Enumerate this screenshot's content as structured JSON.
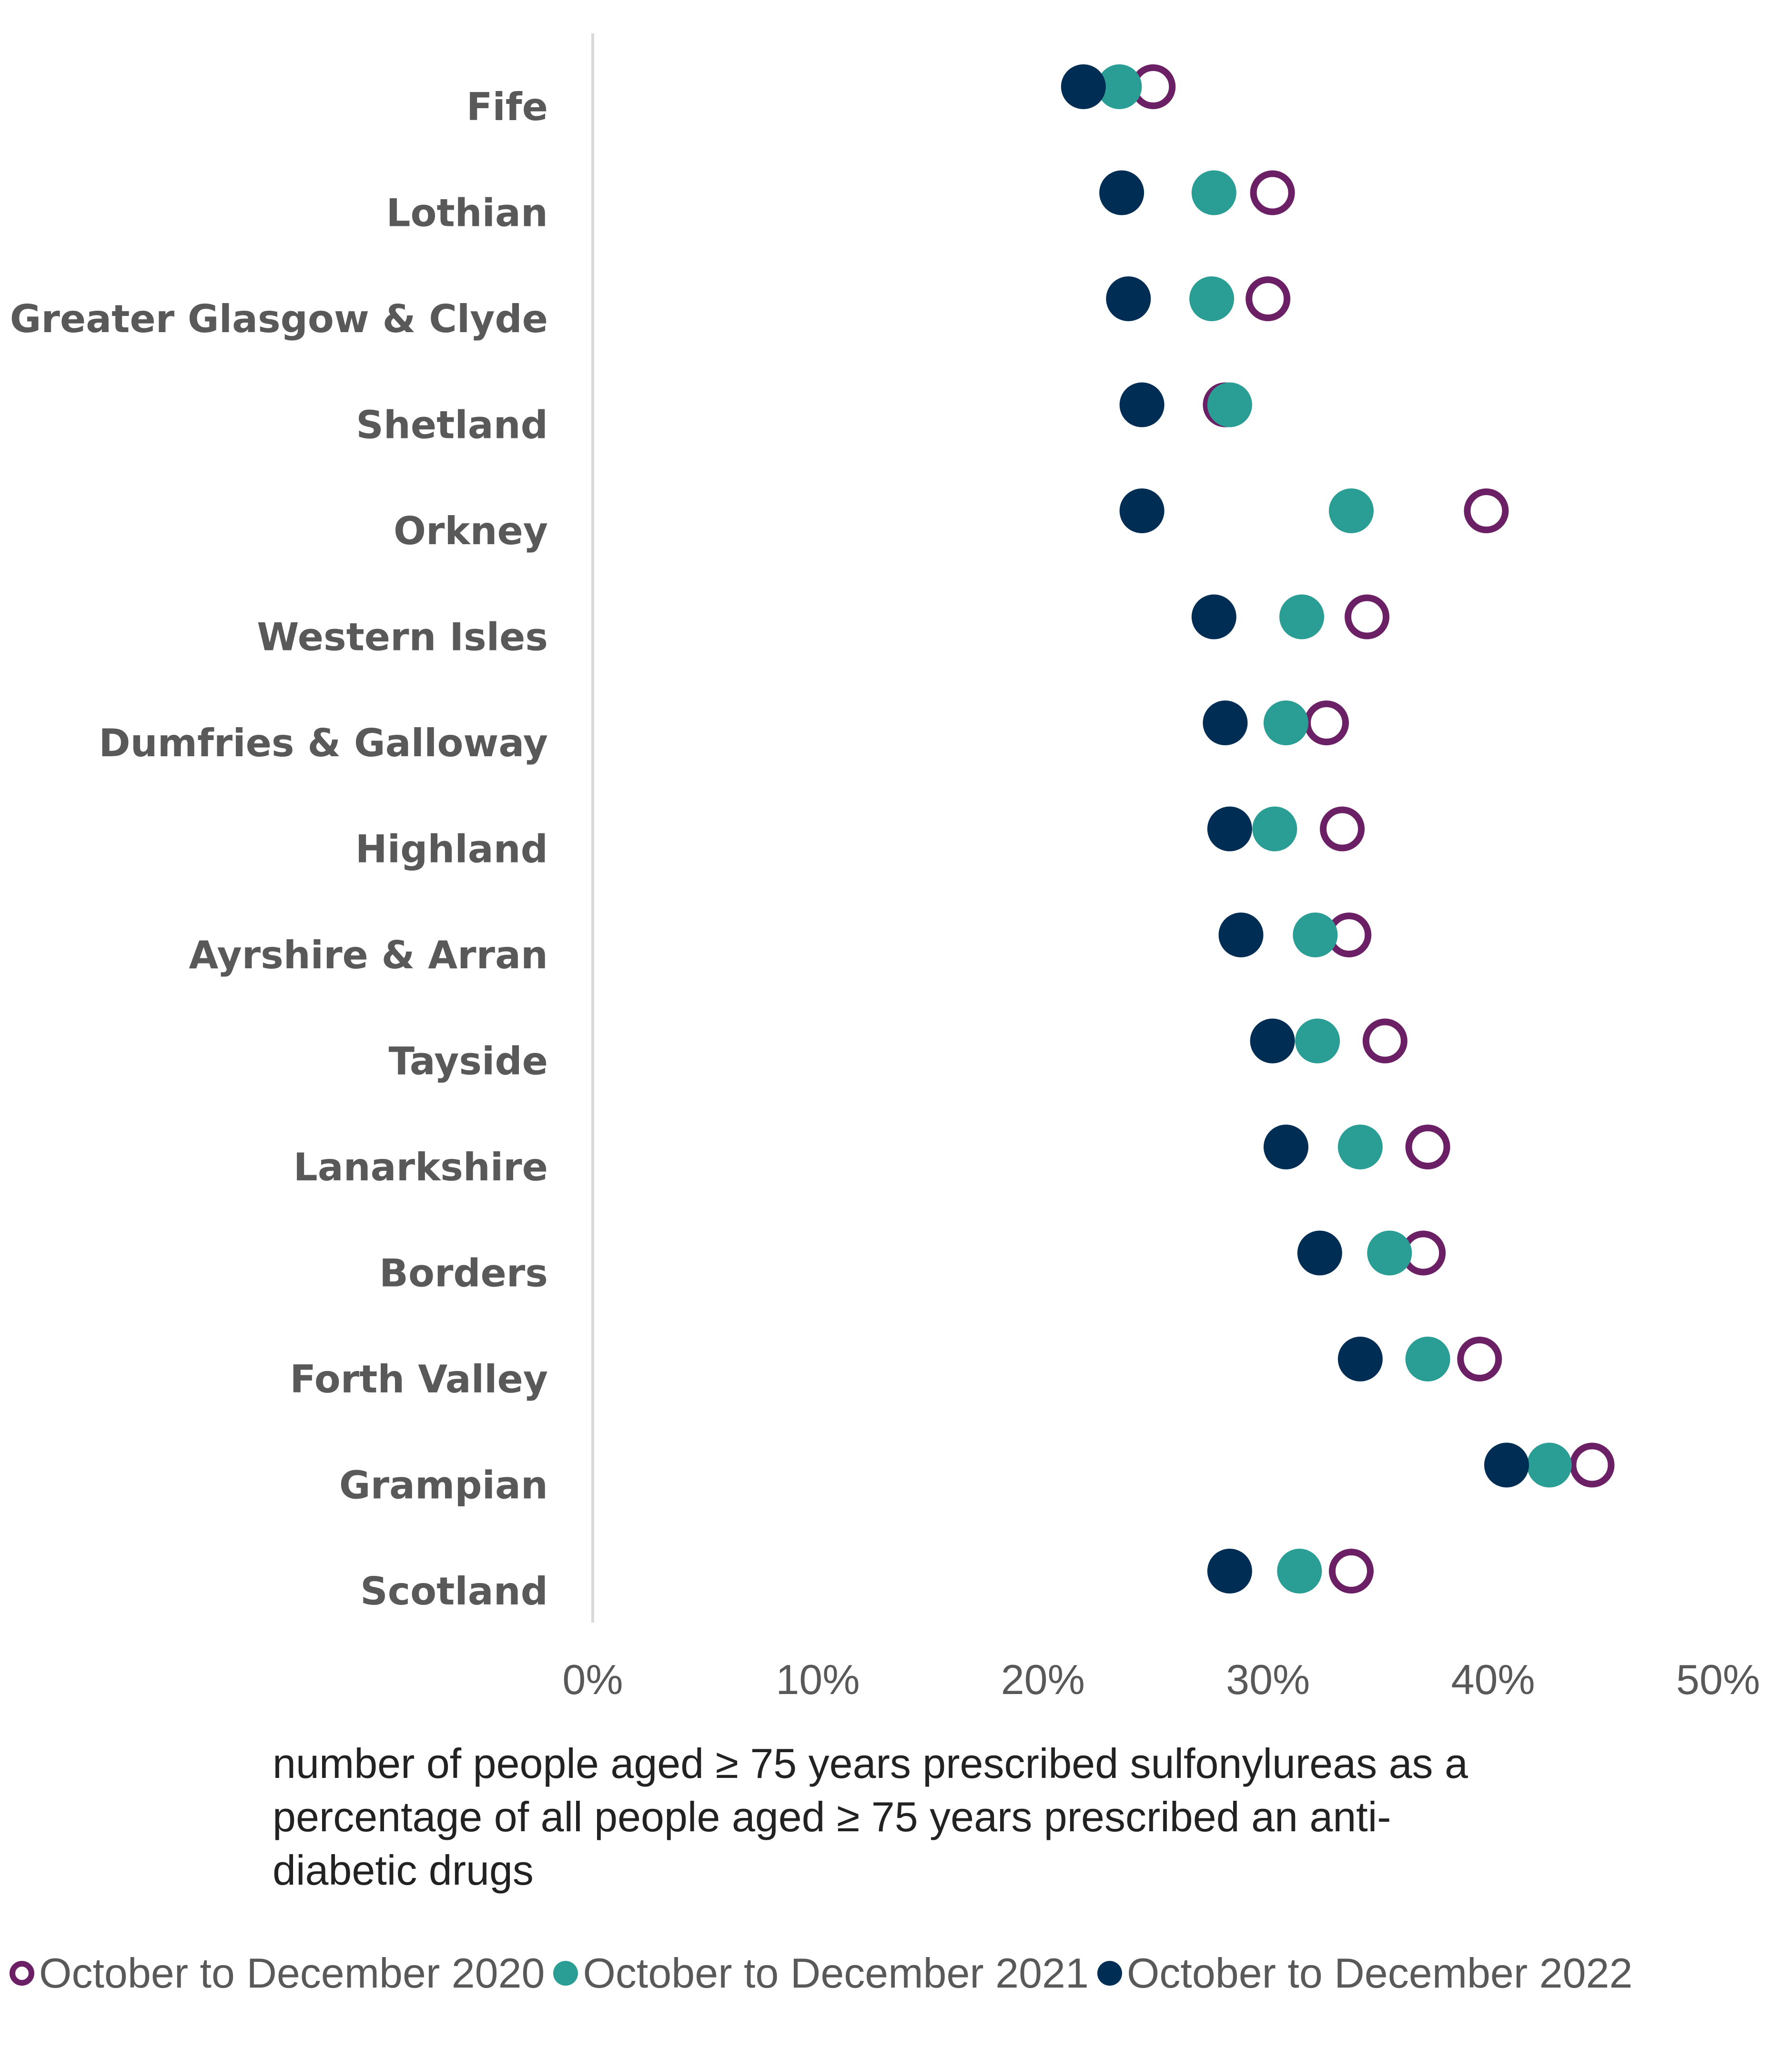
{
  "chart_data": {
    "type": "scatter",
    "orientation": "horizontal-dot-plot",
    "categories": [
      "Fife",
      "Lothian",
      "Greater Glasgow & Clyde",
      "Shetland",
      "Orkney",
      "Western Isles",
      "Dumfries & Galloway",
      "Highland",
      "Ayrshire & Arran",
      "Tayside",
      "Lanarkshire",
      "Borders",
      "Forth Valley",
      "Grampian",
      "Scotland"
    ],
    "series": [
      {
        "name": "October to December 2020",
        "style": "hollow",
        "color": "#6B1F64",
        "values": [
          24.9,
          30.2,
          30.0,
          28.1,
          39.7,
          34.4,
          32.6,
          33.3,
          33.6,
          35.2,
          37.1,
          36.9,
          39.4,
          44.4,
          33.7
        ]
      },
      {
        "name": "October to December 2021",
        "style": "filled",
        "color": "#2A9D94",
        "values": [
          23.4,
          27.6,
          27.5,
          28.3,
          33.7,
          31.5,
          30.8,
          30.3,
          32.1,
          32.2,
          34.1,
          35.4,
          37.1,
          42.5,
          31.4
        ]
      },
      {
        "name": "October to December 2022",
        "style": "filled",
        "color": "#002D54",
        "values": [
          21.8,
          23.5,
          23.8,
          24.4,
          24.4,
          27.6,
          28.1,
          28.3,
          28.8,
          30.2,
          30.8,
          32.3,
          34.1,
          40.6,
          28.3
        ]
      }
    ],
    "xlim": [
      0,
      50
    ],
    "xticks": [
      0,
      10,
      20,
      30,
      40,
      50
    ],
    "xtick_labels": [
      "0%",
      "10%",
      "20%",
      "30%",
      "40%",
      "50%"
    ],
    "xlabel": "number of people aged ≥ 75 years prescribed sulfonylureas as a percentage of all people aged ≥ 75 years prescribed an anti-diabetic drugs",
    "ylabel": "",
    "title": "",
    "grid": false,
    "legend_position": "bottom"
  },
  "xlabel_lines": [
    "number of people aged ≥ 75 years prescribed sulfonylureas as a",
    "percentage of all people aged ≥ 75 years prescribed an anti-",
    "diabetic drugs"
  ],
  "legend": [
    {
      "label": "October to December 2020",
      "color": "#6B1F64",
      "style": "hollow"
    },
    {
      "label": "October to December 2021",
      "color": "#2A9D94",
      "style": "filled"
    },
    {
      "label": "October to December 2022",
      "color": "#002D54",
      "style": "filled"
    }
  ]
}
